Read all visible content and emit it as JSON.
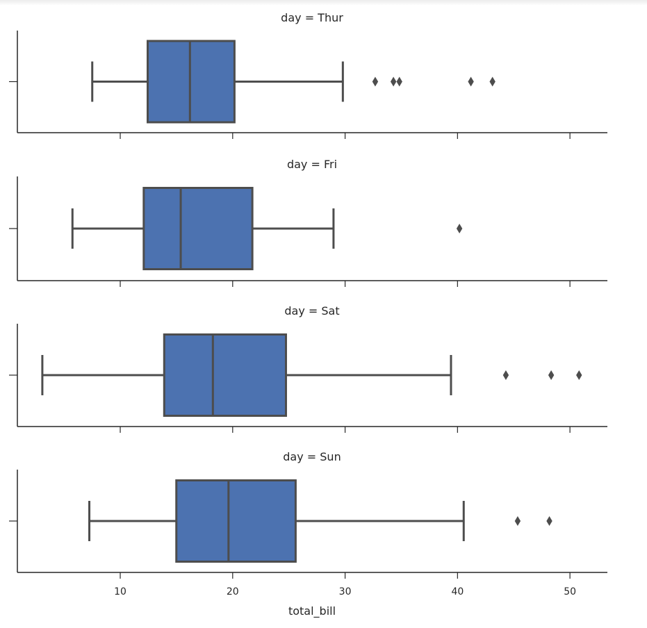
{
  "chart_data": {
    "type": "box",
    "orientation": "horizontal",
    "facets": [
      {
        "title": "day = Thur",
        "whisker_low": 7.51,
        "q1": 12.44,
        "median": 16.2,
        "q3": 20.16,
        "whisker_high": 29.8,
        "outliers": [
          32.68,
          34.3,
          34.83,
          41.19,
          43.11
        ]
      },
      {
        "title": "day = Fri",
        "whisker_low": 5.75,
        "q1": 12.09,
        "median": 15.38,
        "q3": 21.75,
        "whisker_high": 28.97,
        "outliers": [
          40.17
        ]
      },
      {
        "title": "day = Sat",
        "whisker_low": 3.07,
        "q1": 13.91,
        "median": 18.24,
        "q3": 24.74,
        "whisker_high": 39.42,
        "outliers": [
          44.3,
          48.33,
          50.81
        ]
      },
      {
        "title": "day = Sun",
        "whisker_low": 7.25,
        "q1": 14.99,
        "median": 19.63,
        "q3": 25.6,
        "whisker_high": 40.55,
        "outliers": [
          45.35,
          48.17
        ]
      }
    ],
    "xlabel": "total_bill",
    "ylabel": "",
    "xlim": [
      0.85,
      53.33
    ],
    "xticks": [
      10,
      20,
      30,
      40,
      50
    ],
    "xtick_labels": [
      "10",
      "20",
      "30",
      "40",
      "50"
    ],
    "grid": false,
    "colors": {
      "box_fill": "#4c72b0",
      "line": "#4d4d4d",
      "axis": "#262626"
    }
  }
}
